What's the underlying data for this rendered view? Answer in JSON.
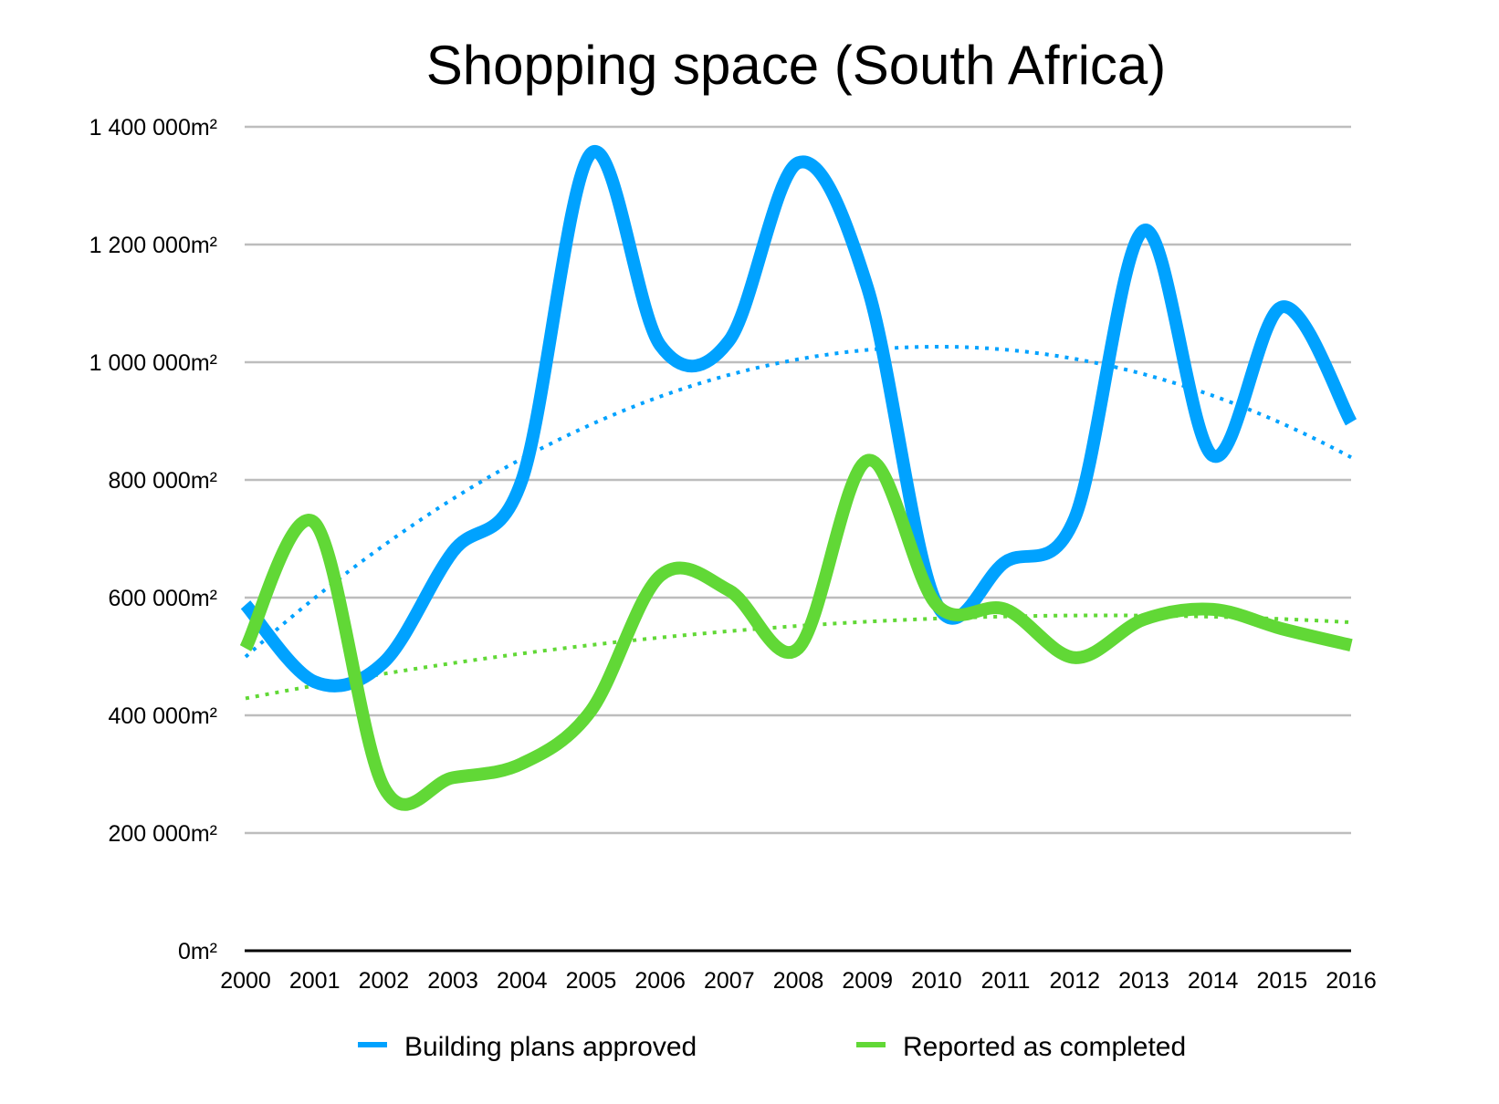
{
  "chart_data": {
    "type": "line",
    "title": "Shopping space (South Africa)",
    "xlabel": "",
    "ylabel": "",
    "x": [
      2000,
      2001,
      2002,
      2003,
      2004,
      2005,
      2006,
      2007,
      2008,
      2009,
      2010,
      2011,
      2012,
      2013,
      2014,
      2015,
      2016
    ],
    "x_tick_labels": [
      "2000",
      "2001",
      "2002",
      "2003",
      "2004",
      "2005",
      "2006",
      "2007",
      "2008",
      "2009",
      "2010",
      "2011",
      "2012",
      "2013",
      "2014",
      "2015",
      "2016"
    ],
    "ylim": [
      0,
      1400000
    ],
    "y_ticks": [
      0,
      200000,
      400000,
      600000,
      800000,
      1000000,
      1200000,
      1400000
    ],
    "y_tick_labels": [
      "0m²",
      "200 000m²",
      "400 000m²",
      "600 000m²",
      "800 000m²",
      "1 000 000m²",
      "1 200 000m²",
      "1 400 000m²"
    ],
    "grid": "horizontal",
    "legend_position": "bottom",
    "smoothed": true,
    "series": [
      {
        "name": "Building plans approved",
        "color": "#00A2FF",
        "trendline": "polynomial (dotted)",
        "values": [
          588000,
          457000,
          490000,
          678000,
          800000,
          1355000,
          1029000,
          1037000,
          1339000,
          1127000,
          590000,
          661000,
          735000,
          1224000,
          841000,
          1094000,
          898000
        ]
      },
      {
        "name": "Reported as completed",
        "color": "#61D836",
        "trendline": "polynomial (dotted)",
        "values": [
          514000,
          727000,
          278000,
          294000,
          318000,
          408000,
          637000,
          612000,
          514000,
          833000,
          588000,
          580000,
          498000,
          563000,
          580000,
          547000,
          519000
        ]
      }
    ]
  }
}
